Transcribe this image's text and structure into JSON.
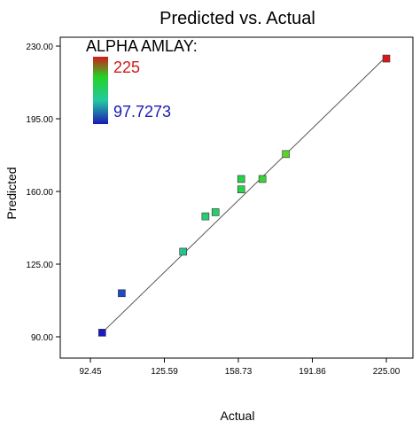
{
  "chart_data": {
    "type": "scatter",
    "title": "Predicted vs. Actual",
    "xlabel": "Actual",
    "ylabel": "Predicted",
    "xlim": [
      92.45,
      225.0
    ],
    "ylim": [
      90.0,
      230.0
    ],
    "x_ticks": [
      "92.45",
      "125.59",
      "158.73",
      "191.86",
      "225.00"
    ],
    "y_ticks": [
      "90.00",
      "125.00",
      "160.00",
      "195.00",
      "230.00"
    ],
    "x_tick_values": [
      92.45,
      125.59,
      158.73,
      191.86,
      225.0
    ],
    "y_tick_values": [
      90.0,
      125.0,
      160.0,
      195.0,
      230.0
    ],
    "grid": false,
    "legend": {
      "title": "ALPHA AMLAY:",
      "max_label": "225",
      "min_label": "97.7273",
      "placement": "top-left",
      "max_color": "#d21a1a",
      "min_color": "#1a1ab4"
    },
    "reference_line": {
      "from": [
        97.7273,
        92.0
      ],
      "to": [
        225.0,
        225.0
      ],
      "color": "#555555"
    },
    "points": [
      {
        "x": 97.7273,
        "y": 92.0
      },
      {
        "x": 106.5,
        "y": 111.0
      },
      {
        "x": 134.0,
        "y": 131.0
      },
      {
        "x": 144.0,
        "y": 148.0
      },
      {
        "x": 148.5,
        "y": 150.0
      },
      {
        "x": 160.0,
        "y": 161.0
      },
      {
        "x": 160.0,
        "y": 166.0
      },
      {
        "x": 169.5,
        "y": 166.0
      },
      {
        "x": 180.0,
        "y": 178.0
      },
      {
        "x": 225.0,
        "y": 224.0
      }
    ]
  }
}
